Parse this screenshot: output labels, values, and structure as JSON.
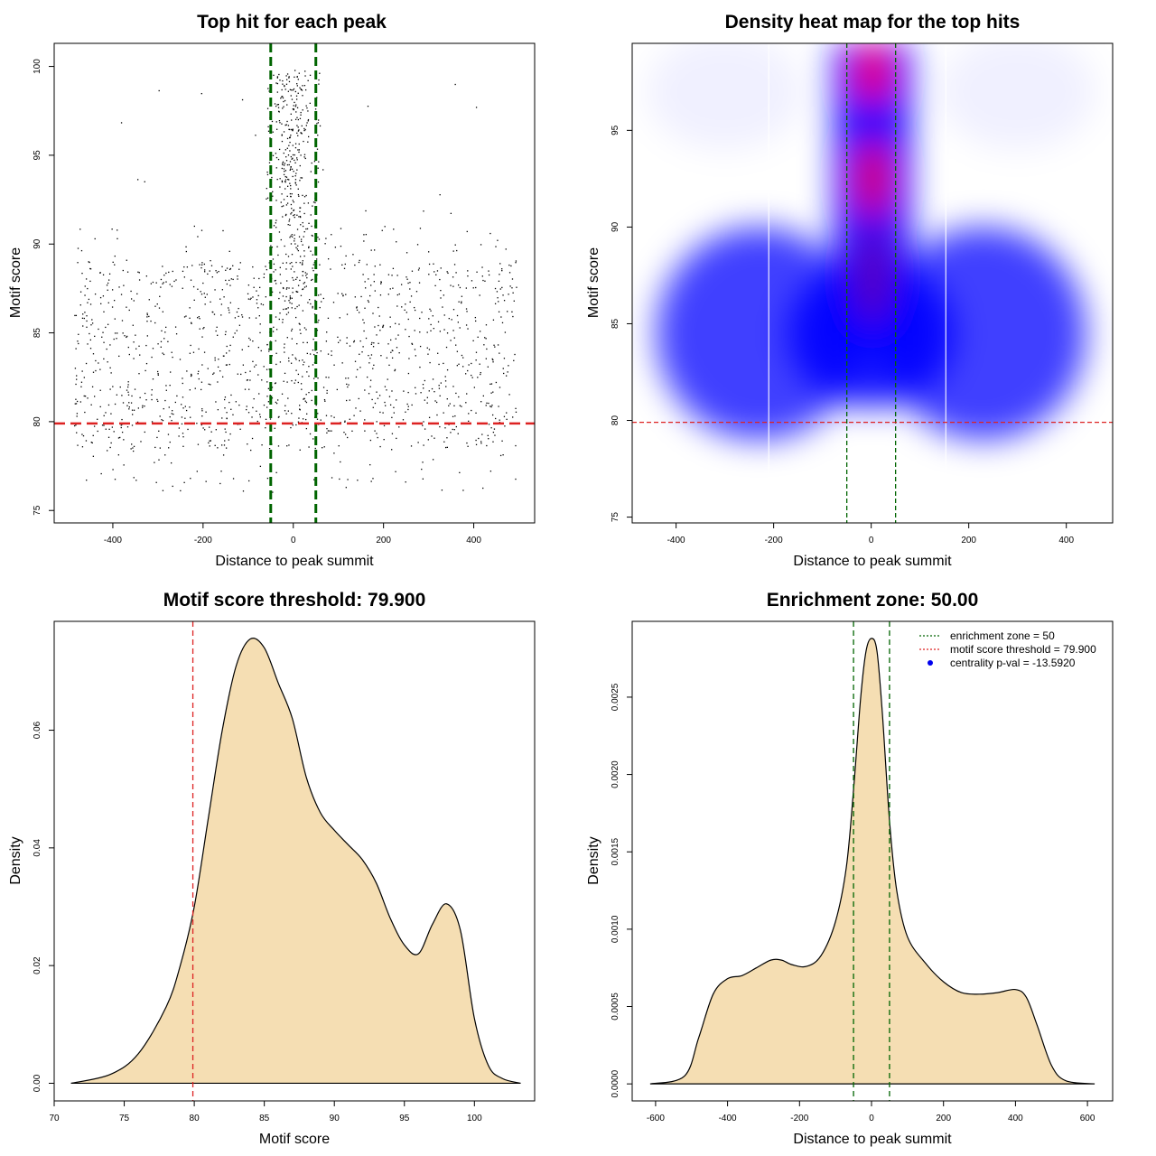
{
  "colors": {
    "zone_line": "#006400",
    "threshold_line": "#dd2222",
    "density_fill": "#f5deb3",
    "points": "#000000",
    "pval_dot": "#0000ee",
    "heat_low": "#ffffff",
    "heat_mid": "#0000ff",
    "heat_high": "#ff0000"
  },
  "chart_data": [
    {
      "id": "scatter",
      "type": "scatter",
      "title": "Top hit for each peak",
      "xlabel": "Distance to peak summit",
      "ylabel": "Motif score",
      "xlim": [
        -530,
        535
      ],
      "ylim": [
        74.3,
        101.3
      ],
      "xticks": [
        -400,
        -200,
        0,
        200,
        400
      ],
      "yticks": [
        75,
        80,
        85,
        90,
        95,
        100
      ],
      "vlines": [
        -50,
        50
      ],
      "hline": 79.9,
      "n_points": 1800,
      "point_distribution": [
        {
          "name": "central-top-hits",
          "x_center": 0,
          "x_spread": 22,
          "y_range": [
            86,
            99.8
          ],
          "count": 260
        },
        {
          "name": "central-band",
          "x_range": [
            -60,
            60
          ],
          "y_range": [
            80,
            99.8
          ],
          "count": 200
        },
        {
          "name": "background",
          "x_range": [
            -485,
            495
          ],
          "y_range": [
            76,
            91
          ],
          "count": 1340
        }
      ]
    },
    {
      "id": "heatmap",
      "type": "heatmap",
      "title": "Density heat map for the top hits",
      "xlabel": "Distance to peak summit",
      "ylabel": "Motif score",
      "xlim": [
        -490,
        495
      ],
      "ylim": [
        74.7,
        99.5
      ],
      "xticks": [
        -400,
        -200,
        0,
        200,
        400
      ],
      "yticks": [
        75,
        80,
        85,
        90,
        95
      ],
      "vlines": [
        -50,
        50
      ],
      "hline": 79.9,
      "density_peaks": [
        {
          "x": 3,
          "y": 98,
          "level": 1.0
        },
        {
          "x": 3,
          "y": 92.5,
          "level": 0.95
        },
        {
          "x": 3,
          "y": 87,
          "level": 0.7
        },
        {
          "x": -360,
          "y": 85,
          "level": 0.5
        },
        {
          "x": 360,
          "y": 85,
          "level": 0.5
        },
        {
          "x": -150,
          "y": 84,
          "level": 0.55
        },
        {
          "x": 150,
          "y": 84,
          "level": 0.55
        }
      ]
    },
    {
      "id": "score_density",
      "type": "area",
      "title": "Motif score threshold: 79.900",
      "xlabel": "Motif score",
      "ylabel": "Density",
      "xlim": [
        70,
        104.3
      ],
      "ylim": [
        -0.003,
        0.0785
      ],
      "xticks": [
        70,
        75,
        80,
        85,
        90,
        95,
        100
      ],
      "yticks": [
        0.0,
        0.02,
        0.04,
        0.06
      ],
      "ytick_labels": [
        "0.00",
        "0.02",
        "0.04",
        "0.06"
      ],
      "vline": 79.9,
      "x": [
        71.2,
        74,
        76,
        78,
        79,
        80,
        81,
        82,
        83,
        84,
        85,
        86,
        87,
        88,
        89,
        90,
        91,
        92,
        93,
        94,
        95,
        96,
        97,
        98,
        99,
        100,
        101,
        102,
        103.3
      ],
      "y": [
        0.0,
        0.0015,
        0.005,
        0.013,
        0.02,
        0.03,
        0.045,
        0.06,
        0.071,
        0.0755,
        0.074,
        0.068,
        0.062,
        0.052,
        0.046,
        0.043,
        0.0405,
        0.038,
        0.034,
        0.028,
        0.0235,
        0.022,
        0.027,
        0.0305,
        0.026,
        0.011,
        0.003,
        0.0008,
        0.0
      ]
    },
    {
      "id": "distance_density",
      "type": "area",
      "title": "Enrichment zone: 50.00",
      "xlabel": "Distance to peak summit",
      "ylabel": "Density",
      "xlim": [
        -665,
        670
      ],
      "ylim": [
        -0.00011,
        0.00299
      ],
      "xticks": [
        -600,
        -400,
        -200,
        0,
        200,
        400,
        600
      ],
      "yticks": [
        0.0,
        0.0005,
        0.001,
        0.0015,
        0.002,
        0.0025
      ],
      "ytick_labels": [
        "0.0000",
        "0.0005",
        "0.0010",
        "0.0015",
        "0.0020",
        "0.0025"
      ],
      "vlines": [
        -50,
        50
      ],
      "x": [
        -615,
        -520,
        -480,
        -440,
        -400,
        -360,
        -320,
        -280,
        -250,
        -220,
        -180,
        -140,
        -100,
        -70,
        -50,
        -30,
        -15,
        0,
        15,
        30,
        50,
        70,
        100,
        150,
        200,
        250,
        300,
        350,
        400,
        430,
        460,
        500,
        540,
        620
      ],
      "y": [
        0.0,
        5e-05,
        0.0003,
        0.00058,
        0.00068,
        0.0007,
        0.00075,
        0.0008,
        0.0008,
        0.00077,
        0.00076,
        0.00083,
        0.00105,
        0.0014,
        0.0019,
        0.0025,
        0.0028,
        0.00288,
        0.0028,
        0.0024,
        0.0017,
        0.00125,
        0.00095,
        0.00078,
        0.00066,
        0.00059,
        0.00058,
        0.00059,
        0.00061,
        0.00056,
        0.00038,
        0.00012,
        2e-05,
        0.0
      ],
      "legend": {
        "position": "top-right",
        "entries": [
          {
            "label": "enrichment zone = 50",
            "style": "green-dotted"
          },
          {
            "label": "motif score threshold = 79.900",
            "style": "red-dotted"
          },
          {
            "label": "centrality p-val = -13.5920",
            "style": "blue-dot"
          }
        ]
      }
    }
  ]
}
